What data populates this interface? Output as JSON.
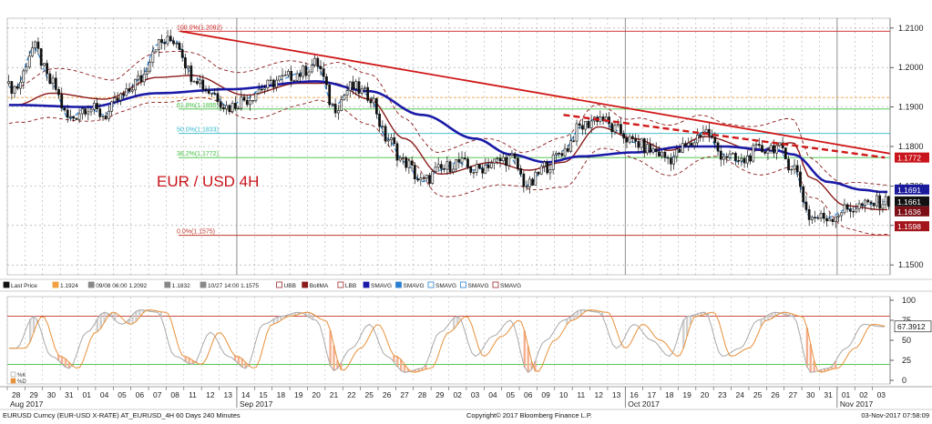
{
  "chart_data": {
    "type": "candlestick",
    "title": "EUR / USD 4H",
    "instrument_label": "EURUSD Curncy (EUR-USD X-RATE) AT_EURUSD_4H 60 Days 240 Minutes",
    "copyright": "Copyright© 2017 Bloomberg Finance L.P.",
    "timestamp": "03-Nov-2017 07:58:09",
    "price_axis": {
      "ticks": [
        "1.2100",
        "1.2000",
        "1.1900",
        "1.1800",
        "1.1700",
        "1.1600",
        "1.1500"
      ],
      "range": [
        1.1475,
        1.2125
      ]
    },
    "price_tags": [
      {
        "text": "1.1772",
        "value": 1.1772,
        "bg": "#c9141b"
      },
      {
        "text": "1.1691",
        "value": 1.1691,
        "bg": "#1a1a9c"
      },
      {
        "text": "1.1661",
        "value": 1.1661,
        "bg": "#111111"
      },
      {
        "text": "1.1636",
        "value": 1.1636,
        "bg": "#7a0f16"
      },
      {
        "text": "1.1598",
        "value": 1.1598,
        "bg": "#a3141b"
      }
    ],
    "fib_levels": [
      {
        "label": "100.0%(1.2092)",
        "value": 1.2092,
        "color": "#d02020"
      },
      {
        "label": "61.8%(1.1895)",
        "value": 1.1895,
        "color": "#3fbf3f"
      },
      {
        "label": "50.0%(1.1833)",
        "value": 1.1833,
        "color": "#33b7c9"
      },
      {
        "label": "38.2%(1.1772)",
        "value": 1.1772,
        "color": "#3fbf3f"
      },
      {
        "label": "0.0%(1.1575)",
        "value": 1.1575,
        "color": "#c0392b"
      }
    ],
    "other_levels": [
      {
        "value": 1.1924,
        "color": "#f0a040"
      }
    ],
    "legend": [
      {
        "name": "Last Price",
        "color": "#111111"
      },
      {
        "name": "1.1924",
        "color": "#f0a040"
      },
      {
        "name": "09/08 06:00 1.2092",
        "color": "#888888"
      },
      {
        "name": "1.1832",
        "color": "#888888"
      },
      {
        "name": "10/27 14:00 1.1575",
        "color": "#888888"
      },
      {
        "name": "UBB",
        "color": "#9b2a2a"
      },
      {
        "name": "BollMA",
        "color": "#8b1a1a"
      },
      {
        "name": "LBB",
        "color": "#9b2a2a"
      },
      {
        "name": "SMAVG",
        "color": "#1a1aa8"
      },
      {
        "name": "SMAVG",
        "color": "#2b7fd0"
      },
      {
        "name": "SMAVG",
        "color": "#2b7fd0"
      },
      {
        "name": "SMAVG",
        "color": "#2b7fd0"
      },
      {
        "name": "SMAVG",
        "color": "#9b2a2a"
      }
    ],
    "x_days": [
      "28",
      "29",
      "30",
      "31",
      "01",
      "04",
      "05",
      "06",
      "07",
      "08",
      "11",
      "12",
      "13",
      "14",
      "15",
      "18",
      "19",
      "20",
      "21",
      "22",
      "25",
      "26",
      "27",
      "28",
      "29",
      "02",
      "03",
      "04",
      "05",
      "06",
      "09",
      "10",
      "11",
      "12",
      "13",
      "16",
      "17",
      "18",
      "19",
      "20",
      "23",
      "24",
      "25",
      "26",
      "27",
      "30",
      "31",
      "01",
      "02",
      "03"
    ],
    "month_labels": [
      {
        "text": "Aug 2017",
        "day_index": 0
      },
      {
        "text": "Sep 2017",
        "day_index": 13
      },
      {
        "text": "Oct 2017",
        "day_index": 35
      },
      {
        "text": "Nov 2017",
        "day_index": 47
      }
    ],
    "close_anchors": [
      [
        0,
        1.195
      ],
      [
        1,
        1.205
      ],
      [
        2,
        1.196
      ],
      [
        3,
        1.187
      ],
      [
        4,
        1.19
      ],
      [
        5,
        1.188
      ],
      [
        6,
        1.1925
      ],
      [
        7,
        1.197
      ],
      [
        8,
        1.206
      ],
      [
        9,
        1.207
      ],
      [
        10,
        1.198
      ],
      [
        11,
        1.194
      ],
      [
        12,
        1.19
      ],
      [
        13,
        1.192
      ],
      [
        14,
        1.195
      ],
      [
        15,
        1.197
      ],
      [
        16,
        1.1985
      ],
      [
        17,
        1.201
      ],
      [
        18,
        1.19
      ],
      [
        19,
        1.195
      ],
      [
        20,
        1.193
      ],
      [
        21,
        1.182
      ],
      [
        22,
        1.176
      ],
      [
        23,
        1.171
      ],
      [
        24,
        1.174
      ],
      [
        25,
        1.176
      ],
      [
        26,
        1.174
      ],
      [
        27,
        1.176
      ],
      [
        28,
        1.177
      ],
      [
        29,
        1.17
      ],
      [
        30,
        1.175
      ],
      [
        31,
        1.179
      ],
      [
        32,
        1.185
      ],
      [
        33,
        1.1875
      ],
      [
        34,
        1.184
      ],
      [
        35,
        1.181
      ],
      [
        36,
        1.179
      ],
      [
        37,
        1.177
      ],
      [
        38,
        1.18
      ],
      [
        39,
        1.184
      ],
      [
        40,
        1.178
      ],
      [
        41,
        1.176
      ],
      [
        42,
        1.179
      ],
      [
        43,
        1.18
      ],
      [
        44,
        1.175
      ],
      [
        45,
        1.162
      ],
      [
        46,
        1.162
      ],
      [
        47,
        1.164
      ],
      [
        48,
        1.165
      ],
      [
        49,
        1.166
      ]
    ],
    "sma_blue": [
      [
        0,
        1.1905
      ],
      [
        4,
        1.19
      ],
      [
        8,
        1.1935
      ],
      [
        12,
        1.1945
      ],
      [
        17,
        1.1965
      ],
      [
        20,
        1.194
      ],
      [
        23,
        1.188
      ],
      [
        26,
        1.182
      ],
      [
        28,
        1.178
      ],
      [
        30,
        1.176
      ],
      [
        32,
        1.1775
      ],
      [
        35,
        1.1785
      ],
      [
        38,
        1.18
      ],
      [
        40,
        1.18
      ],
      [
        43,
        1.179
      ],
      [
        44,
        1.178
      ],
      [
        46,
        1.171
      ],
      [
        48,
        1.169
      ],
      [
        49,
        1.1685
      ]
    ],
    "boll_ma": [
      [
        0,
        1.1905
      ],
      [
        2,
        1.1935
      ],
      [
        5,
        1.192
      ],
      [
        8,
        1.1975
      ],
      [
        10,
        1.198
      ],
      [
        13,
        1.193
      ],
      [
        16,
        1.196
      ],
      [
        18,
        1.196
      ],
      [
        20,
        1.192
      ],
      [
        22,
        1.182
      ],
      [
        24,
        1.173
      ],
      [
        27,
        1.176
      ],
      [
        29,
        1.174
      ],
      [
        31,
        1.176
      ],
      [
        33,
        1.185
      ],
      [
        35,
        1.182
      ],
      [
        37,
        1.179
      ],
      [
        39,
        1.1825
      ],
      [
        42,
        1.179
      ],
      [
        44,
        1.181
      ],
      [
        45,
        1.172
      ],
      [
        47,
        1.165
      ],
      [
        49,
        1.164
      ]
    ],
    "stochastic": {
      "ticks": [
        "100",
        "75",
        "50",
        "25",
        "0"
      ],
      "current_value": "67.3912",
      "lines": [
        80,
        20
      ],
      "legend": [
        "%K",
        "%D"
      ],
      "anchors": [
        [
          0,
          40
        ],
        [
          1,
          80
        ],
        [
          2,
          30
        ],
        [
          3,
          15
        ],
        [
          4,
          60
        ],
        [
          5,
          85
        ],
        [
          6,
          70
        ],
        [
          7,
          88
        ],
        [
          8,
          85
        ],
        [
          9,
          30
        ],
        [
          10,
          20
        ],
        [
          11,
          60
        ],
        [
          12,
          30
        ],
        [
          13,
          15
        ],
        [
          14,
          70
        ],
        [
          15,
          80
        ],
        [
          16,
          85
        ],
        [
          17,
          75
        ],
        [
          18,
          12
        ],
        [
          19,
          40
        ],
        [
          20,
          70
        ],
        [
          21,
          30
        ],
        [
          22,
          10
        ],
        [
          23,
          15
        ],
        [
          24,
          60
        ],
        [
          25,
          80
        ],
        [
          26,
          30
        ],
        [
          27,
          55
        ],
        [
          28,
          75
        ],
        [
          29,
          10
        ],
        [
          30,
          50
        ],
        [
          31,
          75
        ],
        [
          32,
          88
        ],
        [
          33,
          85
        ],
        [
          34,
          40
        ],
        [
          35,
          70
        ],
        [
          36,
          50
        ],
        [
          37,
          30
        ],
        [
          38,
          80
        ],
        [
          39,
          85
        ],
        [
          40,
          30
        ],
        [
          41,
          40
        ],
        [
          42,
          75
        ],
        [
          43,
          85
        ],
        [
          44,
          80
        ],
        [
          45,
          10
        ],
        [
          46,
          15
        ],
        [
          47,
          40
        ],
        [
          48,
          70
        ],
        [
          49,
          67
        ]
      ]
    }
  }
}
